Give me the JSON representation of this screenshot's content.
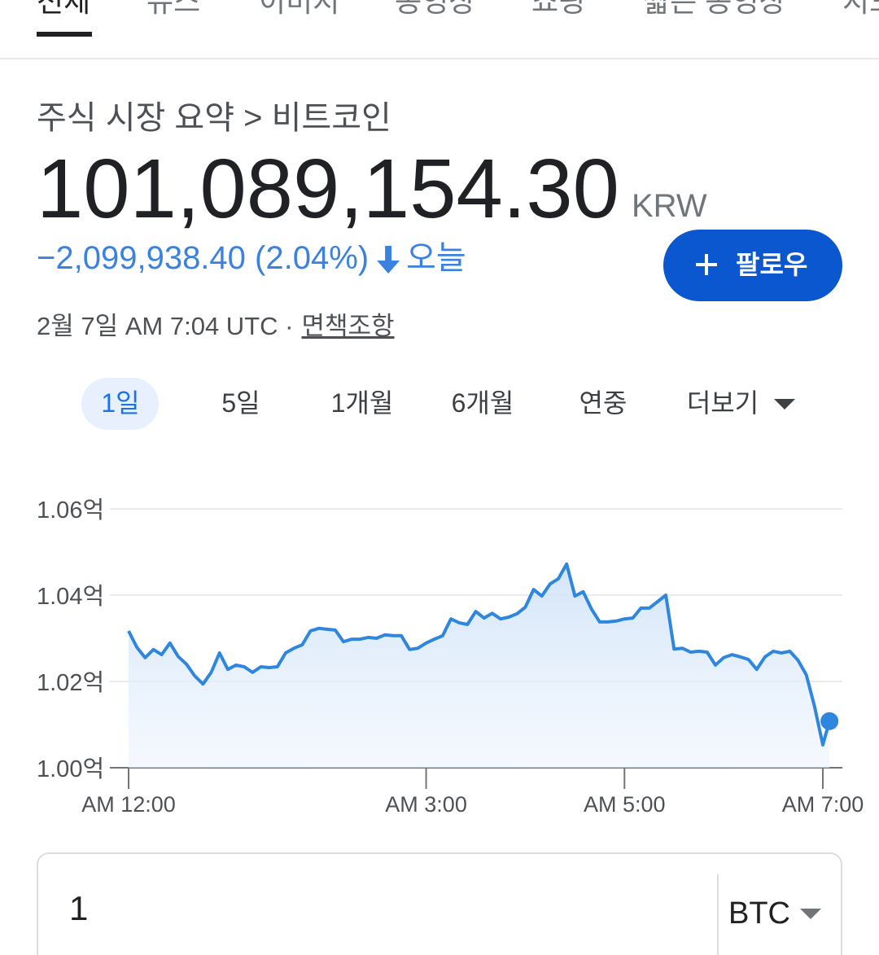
{
  "tabs": [
    "전체",
    "뉴스",
    "이미지",
    "동영상",
    "쇼핑",
    "짧은 동영상",
    "지도"
  ],
  "breadcrumb": "주식 시장 요약 > 비트코인",
  "price": "101,089,154.30",
  "currency": "KRW",
  "change": "−2,099,938.40 (2.04%)",
  "change_period": "오늘",
  "follow_button": "팔로우",
  "timestamp": "2월 7일 AM 7:04 UTC ·",
  "disclaimer": "면책조항",
  "ranges": [
    "1일",
    "5일",
    "1개월",
    "6개월",
    "연중",
    "더보기"
  ],
  "converter": {
    "amount": "1",
    "unit": "BTC"
  },
  "chart_data": {
    "type": "line",
    "color": "#2e86de",
    "x": [
      0,
      5,
      10,
      15,
      20,
      25,
      30,
      35,
      40,
      45,
      50,
      55,
      60,
      65,
      70,
      75,
      80,
      85,
      90,
      95,
      100,
      105,
      110,
      115,
      120,
      125,
      130,
      135,
      140,
      145,
      150,
      155,
      160,
      165,
      170,
      175,
      180,
      185,
      190,
      195,
      200,
      205,
      210,
      215,
      220,
      225,
      230,
      235,
      240,
      245,
      250,
      255,
      260,
      265,
      270,
      275,
      280,
      285,
      290,
      295,
      300,
      305,
      310,
      315,
      320,
      325,
      330,
      335,
      340,
      345,
      350,
      355,
      360,
      365,
      370,
      375,
      380,
      385,
      390,
      395,
      400,
      405,
      410,
      415,
      420,
      424
    ],
    "values": [
      1.0317,
      1.0279,
      1.0255,
      1.0274,
      1.0262,
      1.0289,
      1.0258,
      1.024,
      1.0213,
      1.0194,
      1.0221,
      1.0266,
      1.0228,
      1.0238,
      1.0234,
      1.0221,
      1.0234,
      1.0232,
      1.0234,
      1.0266,
      1.0277,
      1.0285,
      1.0317,
      1.0323,
      1.0321,
      1.0319,
      1.0292,
      1.0298,
      1.0298,
      1.0302,
      1.03,
      1.0308,
      1.0306,
      1.0306,
      1.0274,
      1.0277,
      1.0289,
      1.0298,
      1.0306,
      1.0345,
      1.0336,
      1.0332,
      1.0362,
      1.0347,
      1.0358,
      1.0345,
      1.0349,
      1.0357,
      1.0372,
      1.0413,
      1.0398,
      1.0426,
      1.0438,
      1.0472,
      1.0398,
      1.0408,
      1.0368,
      1.0338,
      1.0338,
      1.034,
      1.0345,
      1.0347,
      1.037,
      1.037,
      1.0385,
      1.04,
      1.0275,
      1.0277,
      1.0268,
      1.027,
      1.0268,
      1.0238,
      1.0255,
      1.0262,
      1.0257,
      1.0251,
      1.0228,
      1.0257,
      1.027,
      1.0266,
      1.027,
      1.0249,
      1.0215,
      1.0142,
      1.0053,
      1.0108
    ],
    "xlim": [
      0,
      420
    ],
    "xticks": [
      {
        "value": 0,
        "label": "AM 12:00"
      },
      {
        "value": 180,
        "label": "AM 3:00"
      },
      {
        "value": 300,
        "label": "AM 5:00"
      },
      {
        "value": 420,
        "label": "AM 7:00"
      }
    ],
    "ylim": [
      1.0,
      1.06
    ],
    "yticks": [
      {
        "value": 1.0,
        "label": "1.00억"
      },
      {
        "value": 1.02,
        "label": "1.02억"
      },
      {
        "value": 1.04,
        "label": "1.04억"
      },
      {
        "value": 1.06,
        "label": "1.06억"
      }
    ],
    "grid": true
  }
}
